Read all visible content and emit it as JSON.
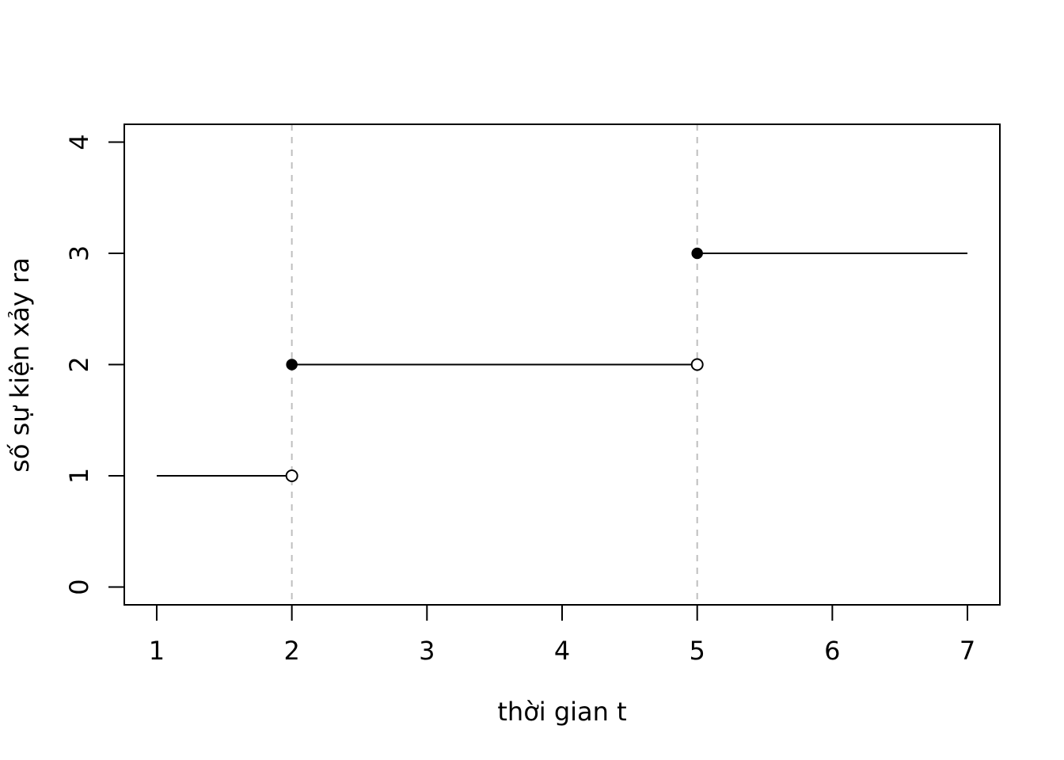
{
  "chart_data": {
    "type": "line",
    "title": "",
    "xlabel": "thời gian t",
    "ylabel": "số sự kiện xảy ra",
    "xlim": [
      0.76,
      7.24
    ],
    "ylim": [
      -0.16,
      4.16
    ],
    "x_ticks": [
      1,
      2,
      3,
      4,
      5,
      6,
      7
    ],
    "y_ticks": [
      0,
      1,
      2,
      3,
      4
    ],
    "grid": false,
    "vertical_reference_lines": [
      2,
      5
    ],
    "reference_line_color": "#bebebe",
    "line_color": "#000000",
    "steps": [
      {
        "x_start": 1,
        "x_end": 2,
        "y": 1,
        "closed_start": false,
        "open_end": true
      },
      {
        "x_start": 2,
        "x_end": 5,
        "y": 2,
        "closed_start": true,
        "open_end": true
      },
      {
        "x_start": 5,
        "x_end": 7,
        "y": 3,
        "closed_start": true,
        "open_end": false
      }
    ]
  }
}
